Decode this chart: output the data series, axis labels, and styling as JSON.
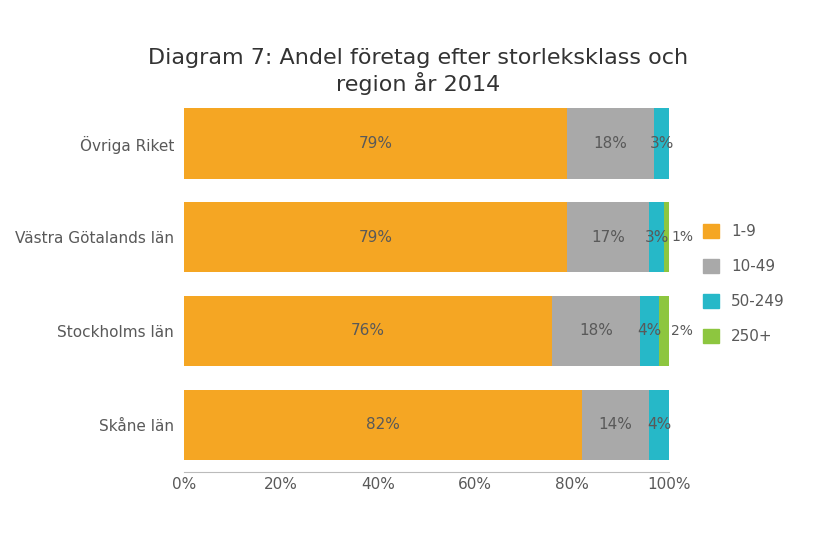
{
  "title": "Diagram 7: Andel företag efter storleksklass och\nregion år 2014",
  "categories": [
    "Skåne län",
    "Stockholms län",
    "Västra Götalands län",
    "Övriga Riket"
  ],
  "series": {
    "1-9": [
      82,
      76,
      79,
      79
    ],
    "10-49": [
      14,
      18,
      17,
      18
    ],
    "50-249": [
      4,
      4,
      3,
      3
    ],
    "250+": [
      0,
      2,
      1,
      0
    ]
  },
  "colors": {
    "1-9": "#F5A623",
    "10-49": "#A9A9A9",
    "50-249": "#26B8C8",
    "250+": "#8DC63F"
  },
  "xlim": [
    0,
    100
  ],
  "xticks": [
    0,
    20,
    40,
    60,
    80,
    100
  ],
  "xticklabels": [
    "0%",
    "20%",
    "40%",
    "60%",
    "80%",
    "100%"
  ],
  "bar_height": 0.75,
  "background_color": "#FFFFFF",
  "label_color": "#595959",
  "title_fontsize": 16,
  "label_fontsize": 11,
  "tick_fontsize": 11
}
